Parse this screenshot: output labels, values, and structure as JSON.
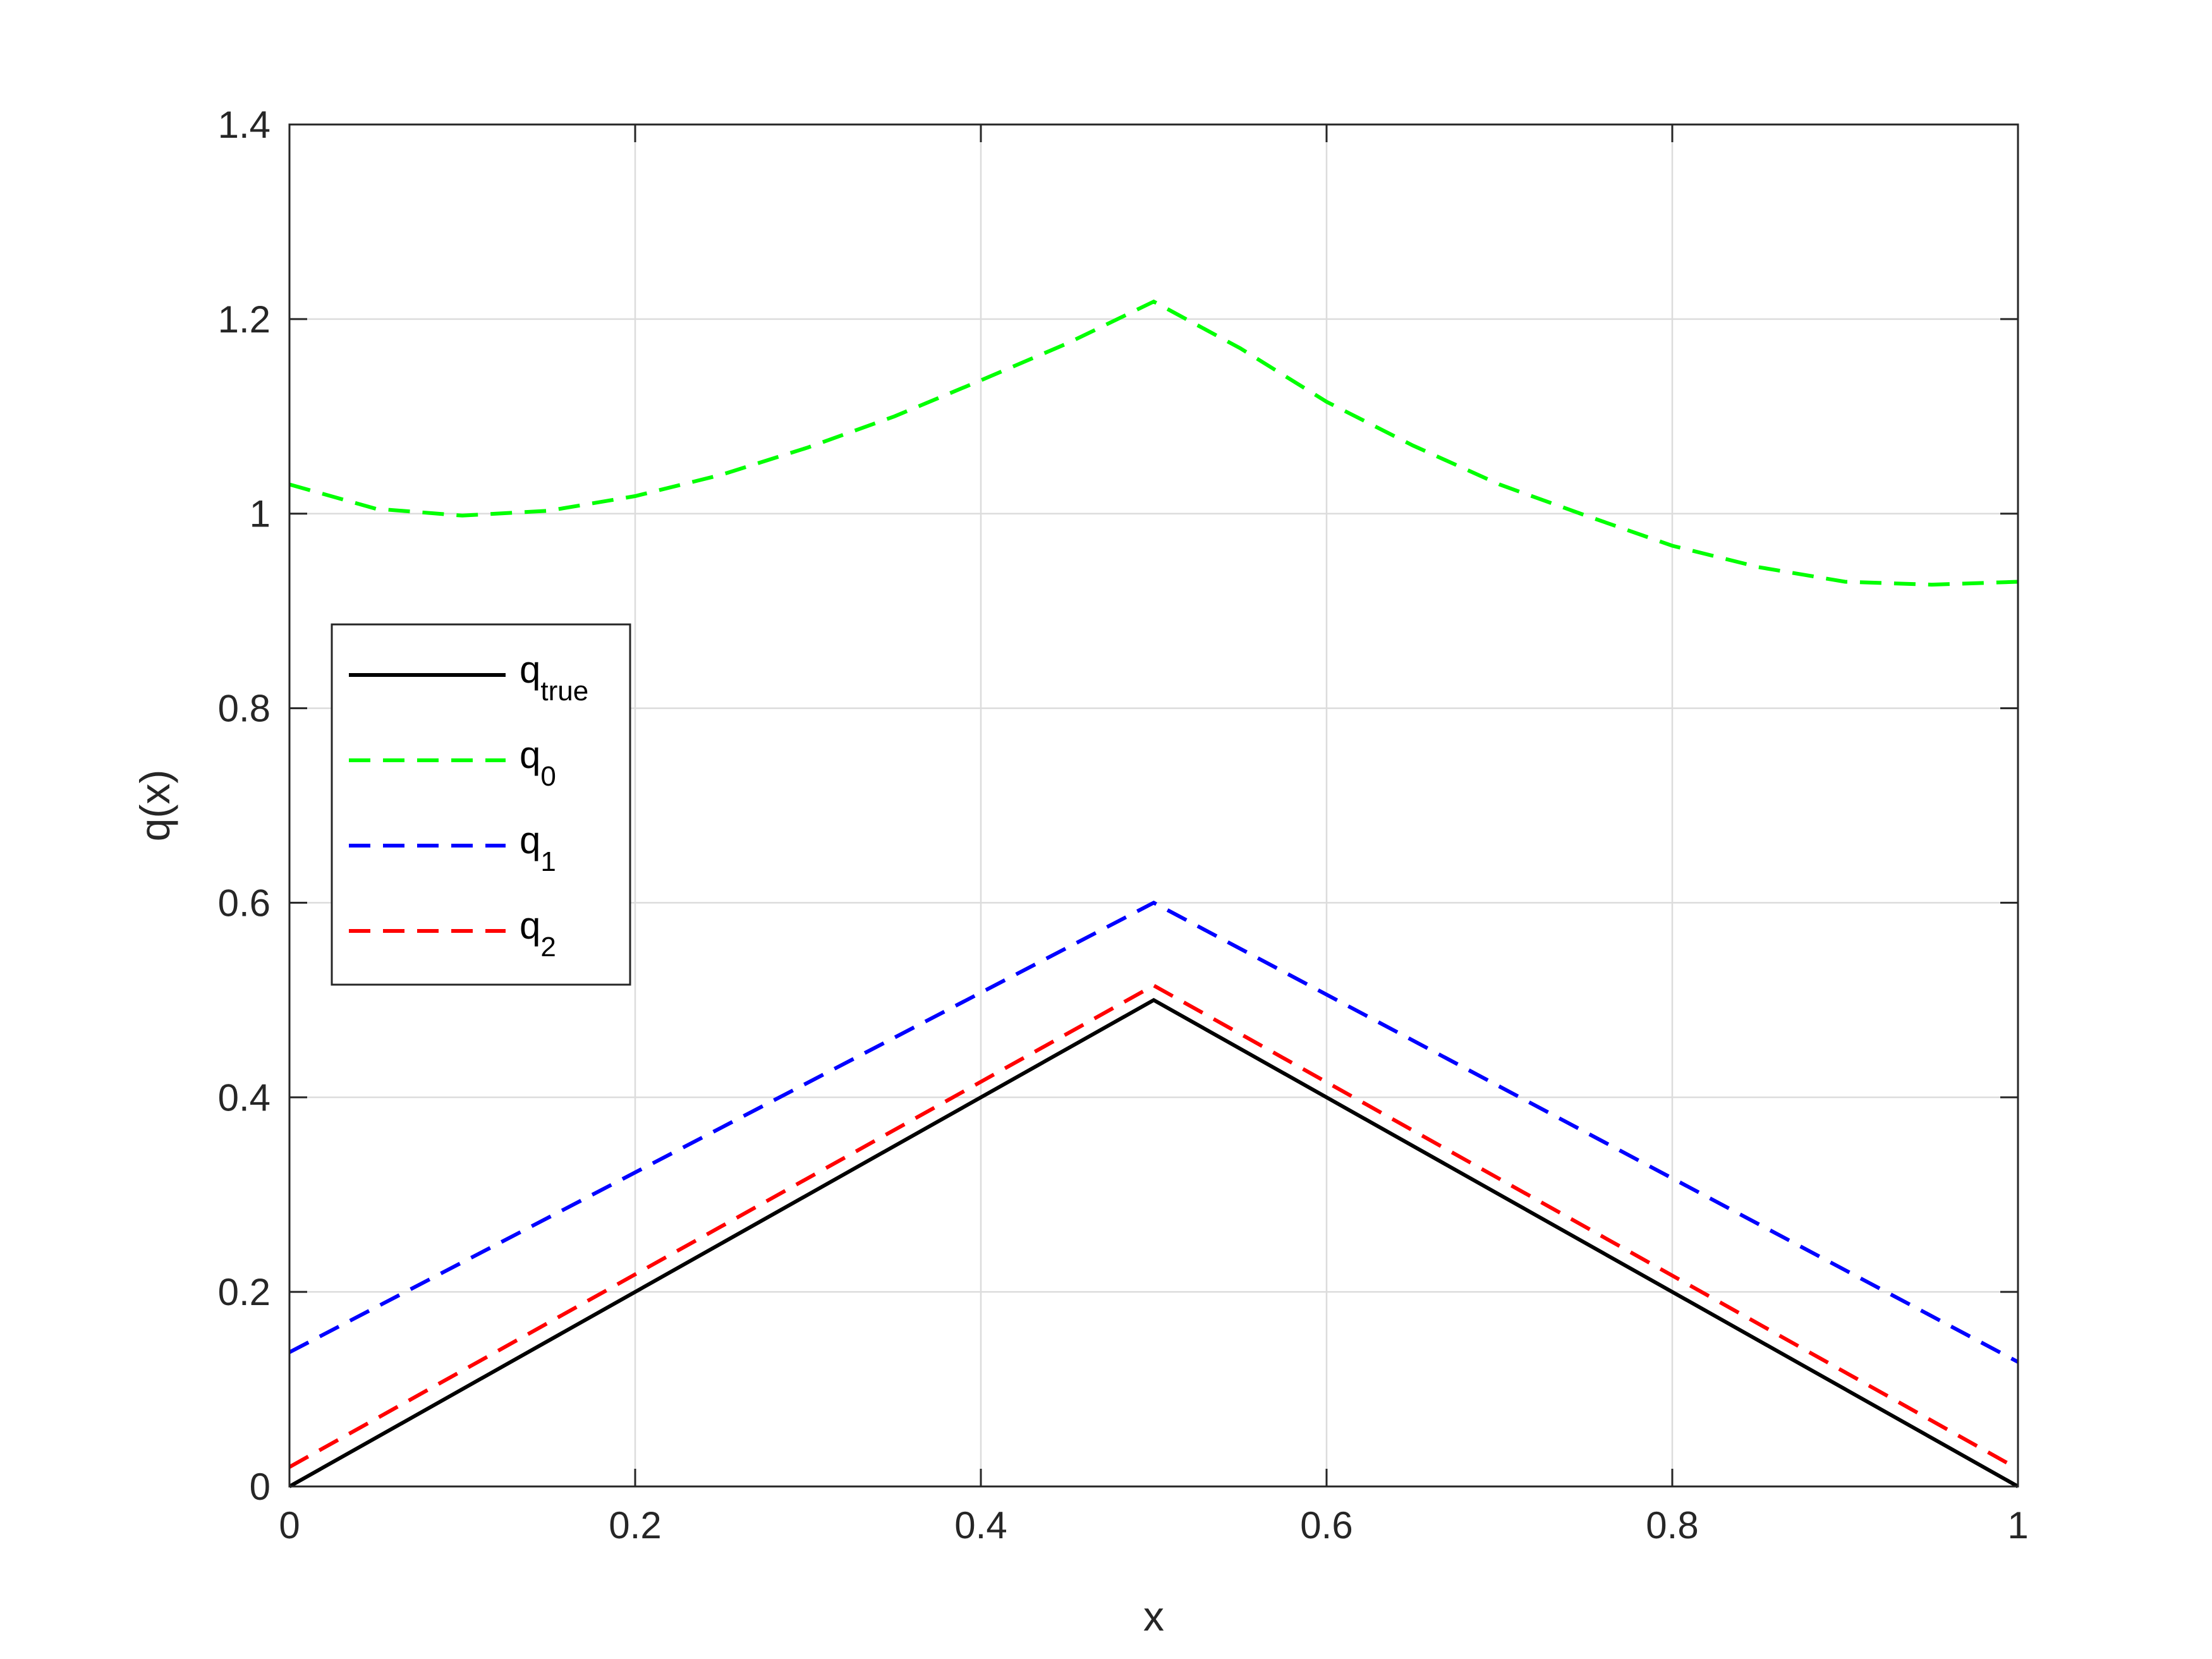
{
  "chart_data": {
    "type": "line",
    "title": "",
    "xlabel": "x",
    "ylabel": "q(x)",
    "xlim": [
      0,
      1
    ],
    "ylim": [
      0,
      1.4
    ],
    "xticks": [
      0,
      0.2,
      0.4,
      0.6,
      0.8,
      1
    ],
    "xtick_labels": [
      "0",
      "0.2",
      "0.4",
      "0.6",
      "0.8",
      "1"
    ],
    "yticks": [
      0,
      0.2,
      0.4,
      0.6,
      0.8,
      1,
      1.2,
      1.4
    ],
    "ytick_labels": [
      "0",
      "0.2",
      "0.4",
      "0.6",
      "0.8",
      "1",
      "1.2",
      "1.4"
    ],
    "grid": true,
    "legend_position": "left",
    "series": [
      {
        "name": "q",
        "name_sub": "true",
        "color": "#000000",
        "style": "solid",
        "x": [
          0,
          0.5,
          1
        ],
        "y": [
          0,
          0.5,
          0
        ]
      },
      {
        "name": "q",
        "name_sub": "0",
        "color": "#00ff00",
        "style": "dashed",
        "x": [
          0,
          0.05,
          0.1,
          0.15,
          0.2,
          0.25,
          0.3,
          0.35,
          0.4,
          0.45,
          0.5,
          0.55,
          0.6,
          0.65,
          0.7,
          0.75,
          0.8,
          0.85,
          0.9,
          0.95,
          1
        ],
        "y": [
          1.03,
          1.005,
          0.998,
          1.003,
          1.018,
          1.04,
          1.068,
          1.1,
          1.137,
          1.175,
          1.218,
          1.17,
          1.115,
          1.07,
          1.03,
          0.998,
          0.967,
          0.945,
          0.93,
          0.927,
          0.93
        ]
      },
      {
        "name": "q",
        "name_sub": "1",
        "color": "#0000ff",
        "style": "dashed",
        "x": [
          0,
          0.5,
          1
        ],
        "y": [
          0.138,
          0.6,
          0.128
        ]
      },
      {
        "name": "q",
        "name_sub": "2",
        "color": "#ff0000",
        "style": "dashed",
        "x": [
          0,
          0.5,
          1
        ],
        "y": [
          0.02,
          0.515,
          0.018
        ]
      }
    ]
  }
}
